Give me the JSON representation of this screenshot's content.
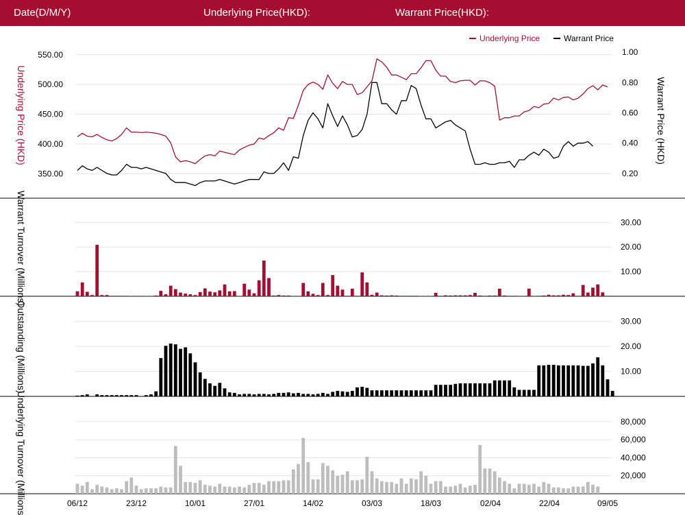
{
  "header": {
    "date_label": "Date(D/M/Y)",
    "underlying_label": "Underlying Price(HKD):",
    "warrant_label": "Warrant Price(HKD):"
  },
  "colors": {
    "header_bg": "#a50e31",
    "underlying": "#a50e31",
    "warrant": "#000000",
    "outstanding": "#000000",
    "underlying_turnover": "#bdbdbd"
  },
  "chart_data": [
    {
      "type": "line",
      "legend": [
        "Underlying Price",
        "Warrant Price"
      ],
      "legend_position": "top-right",
      "ylabel_left": "Underlying Price (HKD)",
      "ylabel_right": "Warrant  Price (HKD)",
      "left_ticks": [
        "350.00",
        "400.00",
        "450.00",
        "500.00",
        "550.00"
      ],
      "right_ticks": [
        "0.20",
        "0.40",
        "0.60",
        "0.80",
        "1.00"
      ],
      "ylim_left": [
        325,
        567
      ],
      "ylim_right": [
        0.1,
        1.05
      ],
      "grid": true,
      "series": [
        {
          "name": "Underlying Price",
          "axis": "left",
          "values": [
            412,
            418,
            413,
            412,
            416,
            411,
            407,
            405,
            409,
            416,
            427,
            420,
            420,
            419,
            420,
            419,
            418,
            416,
            413,
            402,
            378,
            370,
            372,
            370,
            367,
            374,
            380,
            382,
            380,
            388,
            386,
            384,
            382,
            390,
            394,
            398,
            400,
            410,
            408,
            414,
            419,
            427,
            423,
            444,
            443,
            465,
            490,
            500,
            504,
            500,
            492,
            516,
            502,
            493,
            505,
            500,
            500,
            483,
            486,
            496,
            506,
            543,
            538,
            529,
            516,
            516,
            512,
            508,
            518,
            518,
            528,
            540,
            540,
            524,
            514,
            514,
            505,
            503,
            506,
            507,
            507,
            499,
            506,
            506,
            503,
            497,
            440,
            444,
            444,
            447,
            447,
            454,
            456,
            463,
            461,
            467,
            468,
            477,
            474,
            478,
            479,
            474,
            477,
            484,
            493,
            498,
            491,
            499,
            496
          ]
        },
        {
          "name": "Warrant Price",
          "axis": "right",
          "values": [
            0.22,
            0.25,
            0.23,
            0.22,
            0.24,
            0.22,
            0.2,
            0.19,
            0.19,
            0.22,
            0.26,
            0.24,
            0.24,
            0.23,
            0.24,
            0.23,
            0.22,
            0.21,
            0.2,
            0.16,
            0.14,
            0.14,
            0.14,
            0.13,
            0.12,
            0.14,
            0.15,
            0.15,
            0.15,
            0.16,
            0.15,
            0.14,
            0.13,
            0.14,
            0.15,
            0.16,
            0.16,
            0.16,
            0.21,
            0.2,
            0.2,
            0.23,
            0.27,
            0.22,
            0.31,
            0.3,
            0.45,
            0.55,
            0.6,
            0.56,
            0.5,
            0.66,
            0.58,
            0.51,
            0.58,
            0.52,
            0.44,
            0.45,
            0.49,
            0.59,
            0.8,
            0.8,
            0.66,
            0.66,
            0.62,
            0.59,
            0.68,
            0.68,
            0.78,
            0.76,
            0.65,
            0.56,
            0.56,
            0.5,
            0.52,
            0.54,
            0.55,
            0.52,
            0.5,
            0.48,
            0.36,
            0.26,
            0.26,
            0.27,
            0.26,
            0.26,
            0.27,
            0.27,
            0.28,
            0.24,
            0.29,
            0.29,
            0.32,
            0.34,
            0.32,
            0.36,
            0.34,
            0.3,
            0.31,
            0.38,
            0.41,
            0.38,
            0.4,
            0.4,
            0.41,
            0.38
          ]
        }
      ]
    },
    {
      "type": "bar",
      "ylabel": "Warrant  Turnover (Millions)",
      "right_ticks": [
        "10.00",
        "20.00",
        "30.00"
      ],
      "ylim": [
        0,
        34
      ],
      "grid": true,
      "series": [
        {
          "values": [
            2.0,
            5.6,
            1.8,
            0.5,
            20.9,
            0.5,
            0.5,
            0.2,
            0.2,
            0.2,
            0,
            0.1,
            0.1,
            0.1,
            0.1,
            0.1,
            0.3,
            2.2,
            0.8,
            4.3,
            2.9,
            1.5,
            1.1,
            0.8,
            0.5,
            1.7,
            3.2,
            1.9,
            1.6,
            2.4,
            4.8,
            2.0,
            2.1,
            0.1,
            5.1,
            2.7,
            1.2,
            6.5,
            14.5,
            7.4,
            0.3,
            0.5,
            0.3,
            0.3,
            0.1,
            0.1,
            5.4,
            2.0,
            1.0,
            0.5,
            5.4,
            0.5,
            8.6,
            4.3,
            2.7,
            0.2,
            3.1,
            0.2,
            9.7,
            5.6,
            0.6,
            1.5,
            0.4,
            0.3,
            0.4,
            0.3,
            0.2,
            0.2,
            0.2,
            0.2,
            0.1,
            0.1,
            0.1,
            1.4,
            0.2,
            0.4,
            0.3,
            0.4,
            0.4,
            0.4,
            0.5,
            1.4,
            0.3,
            0.2,
            0.3,
            0.3,
            3.1,
            0.3,
            0.2,
            0.2,
            0.1,
            0.1,
            3.1,
            0.1,
            0.2,
            0.3,
            0.6,
            0.4,
            0.4,
            0.6,
            0.5,
            1.2,
            0.2,
            4.6,
            1.5,
            3.5,
            4.8,
            1.6,
            0.2,
            0.2
          ]
        }
      ]
    },
    {
      "type": "bar",
      "ylabel": "Outstanding (Millions)",
      "right_ticks": [
        "10.00",
        "20.00",
        "30.00"
      ],
      "ylim": [
        0,
        34
      ],
      "grid": true,
      "series": [
        {
          "values": [
            0.3,
            0.5,
            0.8,
            0.0,
            0.8,
            0.5,
            0.5,
            0.5,
            0.5,
            0.5,
            0.5,
            0.5,
            0.5,
            0.0,
            0.5,
            0.8,
            2.0,
            15.3,
            20.2,
            21.1,
            20.8,
            19.0,
            19.6,
            17.2,
            13.6,
            9.6,
            7.0,
            5.2,
            4.2,
            5.4,
            3.2,
            1.6,
            1.4,
            0.8,
            1.0,
            1.0,
            0.8,
            1.0,
            1.0,
            0.8,
            1.0,
            1.4,
            1.4,
            1.6,
            1.2,
            1.4,
            1.0,
            1.0,
            0.8,
            1.0,
            1.4,
            1.0,
            1.8,
            2.2,
            2.0,
            1.8,
            2.2,
            3.6,
            3.8,
            3.4,
            2.4,
            2.4,
            2.4,
            2.4,
            2.4,
            2.4,
            2.4,
            2.4,
            2.4,
            2.4,
            2.4,
            2.4,
            2.4,
            4.6,
            4.6,
            4.6,
            4.6,
            5.0,
            5.2,
            5.2,
            5.2,
            5.2,
            5.2,
            5.2,
            5.2,
            6.4,
            6.4,
            6.4,
            6.4,
            3.6,
            2.6,
            2.6,
            2.6,
            2.6,
            12.4,
            12.4,
            12.6,
            12.6,
            12.4,
            12.4,
            12.4,
            12.4,
            12.4,
            12.2,
            12.2,
            13.2,
            15.6,
            12.4,
            6.8,
            2.2
          ]
        }
      ]
    },
    {
      "type": "bar",
      "ylabel": "Underlying Turnover (Millions)",
      "right_ticks": [
        "20,000",
        "40,000",
        "60,000",
        "80,000"
      ],
      "ylim": [
        0,
        86000
      ],
      "grid": true,
      "series": [
        {
          "values": [
            11000,
            9000,
            13000,
            5000,
            10000,
            8000,
            7000,
            5000,
            6000,
            5000,
            14000,
            18000,
            9000,
            5000,
            6000,
            6000,
            6000,
            8000,
            7000,
            7000,
            53000,
            31000,
            13000,
            13000,
            12000,
            15000,
            10000,
            9000,
            8000,
            11000,
            8000,
            8000,
            7000,
            8000,
            7000,
            10000,
            12000,
            12000,
            10000,
            14000,
            14000,
            14000,
            15000,
            15000,
            27000,
            33000,
            62000,
            35000,
            16000,
            16000,
            34000,
            31000,
            26000,
            20000,
            21000,
            25000,
            15000,
            15000,
            16000,
            41000,
            25000,
            17000,
            14000,
            13000,
            13000,
            11000,
            17000,
            11000,
            17000,
            16000,
            25000,
            20000,
            11000,
            14000,
            14000,
            8000,
            8000,
            9000,
            11000,
            7000,
            9000,
            10000,
            54000,
            28000,
            28000,
            25000,
            18000,
            14000,
            11000,
            6000,
            11000,
            11000,
            10000,
            11000,
            8000,
            13000,
            11000,
            7000,
            7000,
            6000,
            6000,
            8000,
            8000,
            8000,
            13000,
            10000,
            8000
          ]
        }
      ]
    }
  ],
  "x_axis": {
    "labels": [
      "06/12",
      "23/12",
      "10/01",
      "27/01",
      "14/02",
      "03/03",
      "18/03",
      "02/04",
      "22/04",
      "09/05"
    ]
  }
}
